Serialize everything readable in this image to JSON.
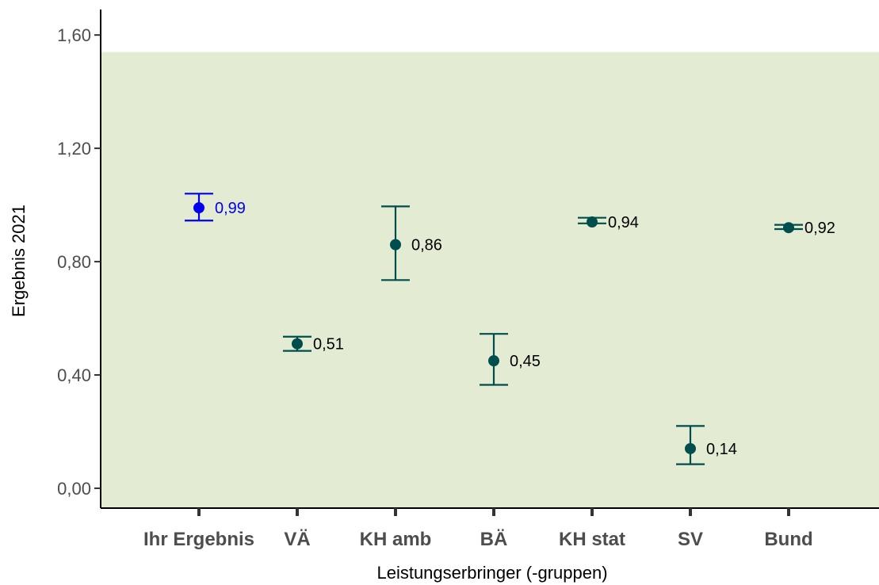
{
  "chart_data": {
    "type": "scatter",
    "title": "",
    "xlabel": "Leistungserbringer (-gruppen)",
    "ylabel": "Ergebnis 2021",
    "ylim": [
      -0.07,
      1.69
    ],
    "yticks": [
      0.0,
      0.4,
      0.8,
      1.2,
      1.6
    ],
    "ytick_labels": [
      "0,00",
      "0,40",
      "0,80",
      "1,20",
      "1,60"
    ],
    "reference_band": {
      "from": -0.07,
      "to": 1.54,
      "color": "#e3ecd3"
    },
    "grid": false,
    "legend": "none",
    "categories": [
      "Ihr Ergebnis",
      "VÄ",
      "KH amb",
      "BÄ",
      "KH stat",
      "SV",
      "Bund"
    ],
    "points": [
      {
        "category": "Ihr Ergebnis",
        "value": 0.99,
        "lower": 0.945,
        "upper": 1.04,
        "label": "0,99",
        "color": "#0000ee"
      },
      {
        "category": "VÄ",
        "value": 0.51,
        "lower": 0.485,
        "upper": 0.535,
        "label": "0,51",
        "color": "#004d4d"
      },
      {
        "category": "KH amb",
        "value": 0.86,
        "lower": 0.735,
        "upper": 0.995,
        "label": "0,86",
        "color": "#004d4d"
      },
      {
        "category": "BÄ",
        "value": 0.45,
        "lower": 0.365,
        "upper": 0.545,
        "label": "0,45",
        "color": "#004d4d"
      },
      {
        "category": "KH stat",
        "value": 0.94,
        "lower": 0.935,
        "upper": 0.955,
        "label": "0,94",
        "color": "#004d4d"
      },
      {
        "category": "SV",
        "value": 0.14,
        "lower": 0.085,
        "upper": 0.22,
        "label": "0,14",
        "color": "#004d4d"
      },
      {
        "category": "Bund",
        "value": 0.92,
        "lower": 0.915,
        "upper": 0.93,
        "label": "0,92",
        "color": "#004d4d"
      }
    ]
  }
}
